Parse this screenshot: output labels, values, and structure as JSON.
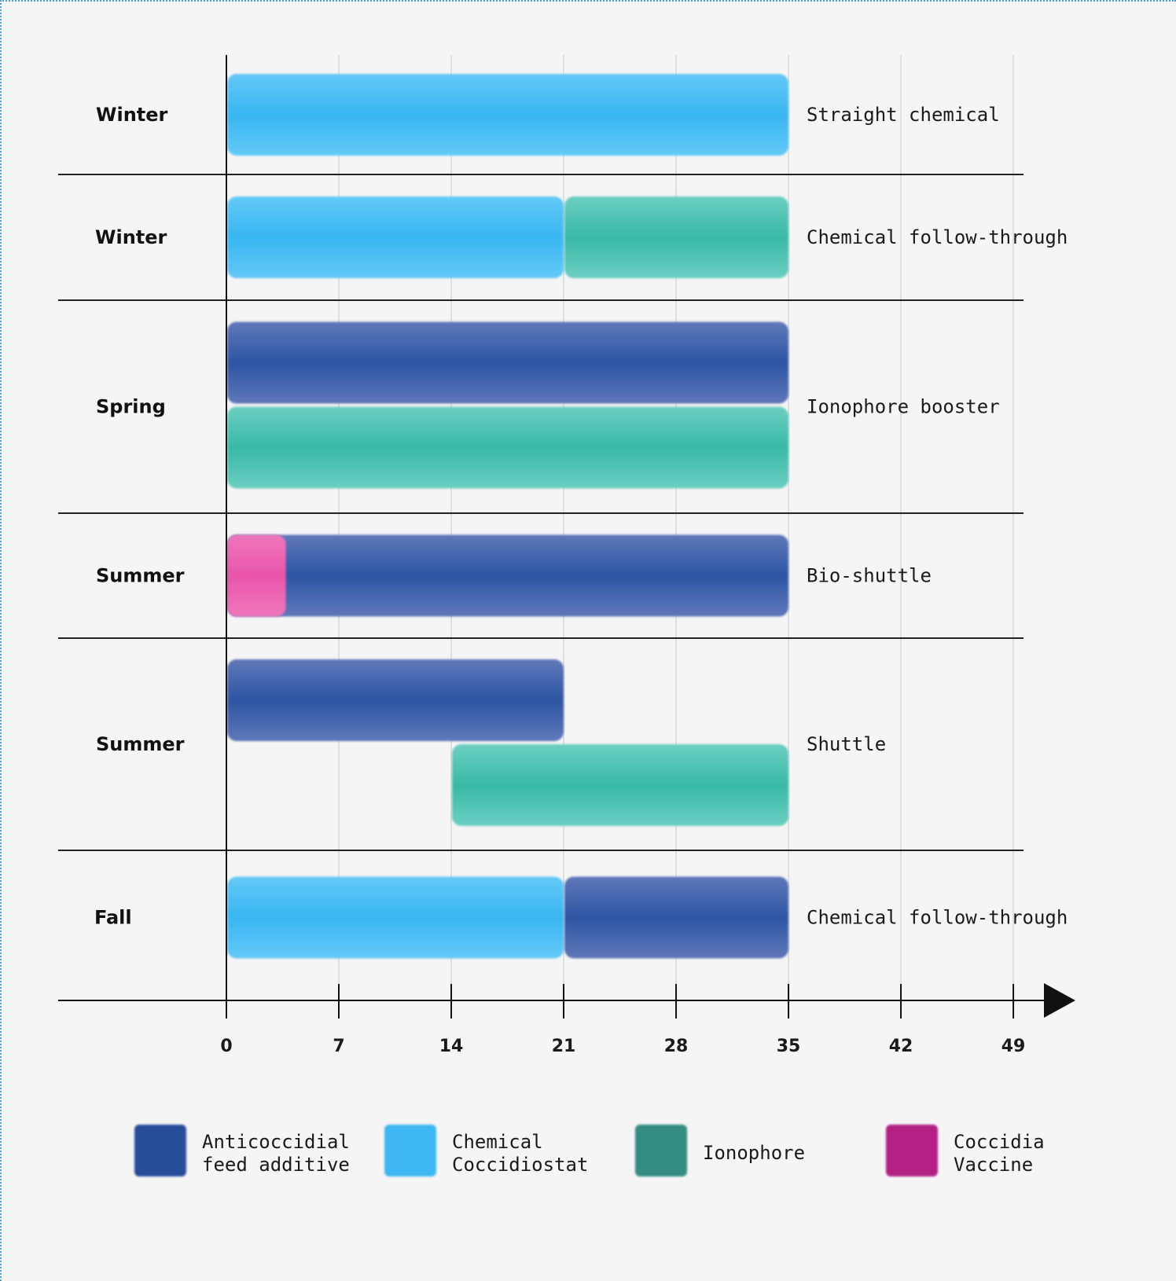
{
  "chart_data": {
    "type": "bar",
    "orientation": "horizontal-gantt",
    "x_ticks": [
      0,
      7,
      14,
      21,
      28,
      35,
      42,
      49
    ],
    "xlim": [
      0,
      49
    ],
    "colors": {
      "anticoccidial": "#2f5aa6",
      "chemical": "#3db8f3",
      "ionophore": "#3dbfaa",
      "vaccine": "#e95aac"
    },
    "rows": [
      {
        "season": "Winter",
        "program": "Straight chemical",
        "bars": [
          {
            "type": "chemical",
            "start": 0,
            "end": 35
          }
        ]
      },
      {
        "season": "Winter",
        "program": "Chemical follow-through",
        "bars": [
          {
            "type": "chemical",
            "start": 0,
            "end": 21
          },
          {
            "type": "ionophore",
            "start": 21,
            "end": 35
          }
        ]
      },
      {
        "season": "Spring",
        "program": "Ionophore booster",
        "bars": [
          {
            "type": "anticoccidial",
            "start": 0,
            "end": 35
          },
          {
            "type": "ionophore",
            "start": 0,
            "end": 35
          }
        ]
      },
      {
        "season": "Summer",
        "program": "Bio-shuttle",
        "bars": [
          {
            "type": "anticoccidial",
            "start": 0,
            "end": 35
          },
          {
            "type": "vaccine",
            "start": 0,
            "end": 3.7
          }
        ]
      },
      {
        "season": "Summer",
        "program": "Shuttle",
        "bars": [
          {
            "type": "anticoccidial",
            "start": 0,
            "end": 21
          },
          {
            "type": "ionophore",
            "start": 14,
            "end": 35
          }
        ]
      },
      {
        "season": "Fall",
        "program": "Chemical follow-through",
        "bars": [
          {
            "type": "chemical",
            "start": 0,
            "end": 21
          },
          {
            "type": "anticoccidial",
            "start": 21,
            "end": 35
          }
        ]
      }
    ],
    "legend": [
      {
        "type": "anticoccidial",
        "lines": [
          "Anticoccidial",
          "feed additive"
        ],
        "color": "#1e4594"
      },
      {
        "type": "chemical",
        "lines": [
          "Chemical",
          "Coccidiostat"
        ],
        "color": "#35b4f2"
      },
      {
        "type": "ionophore",
        "lines": [
          "Ionophore"
        ],
        "color": "#2a877c"
      },
      {
        "type": "vaccine",
        "lines": [
          "Coccidia",
          "Vaccine"
        ],
        "color": "#b0157e"
      }
    ]
  }
}
